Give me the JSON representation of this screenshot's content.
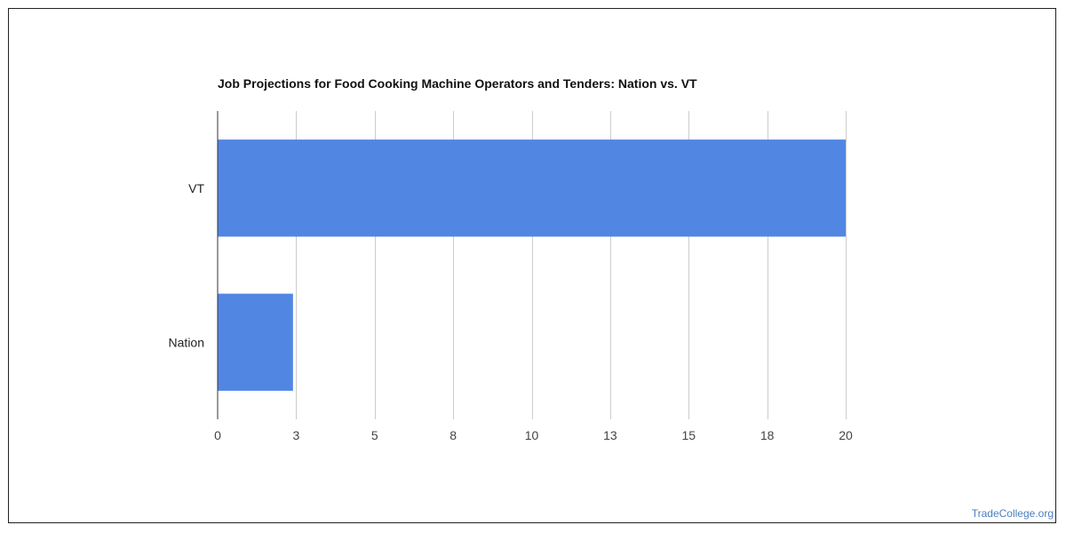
{
  "chart_data": {
    "type": "bar",
    "orientation": "horizontal",
    "title": "Job Projections for Food Cooking Machine Operators and Tenders: Nation vs. VT",
    "categories": [
      "VT",
      "Nation"
    ],
    "values": [
      20,
      2.4
    ],
    "xlim": [
      0,
      20
    ],
    "x_ticks": [
      0,
      2.5,
      5,
      7.5,
      10,
      12.5,
      15,
      17.5,
      20
    ],
    "x_tick_labels": [
      "0",
      "3",
      "5",
      "8",
      "10",
      "13",
      "15",
      "18",
      "20"
    ],
    "grid": true,
    "xlabel": "",
    "ylabel": "",
    "bar_color": "#5286e3"
  },
  "watermark": "TradeCollege.org"
}
